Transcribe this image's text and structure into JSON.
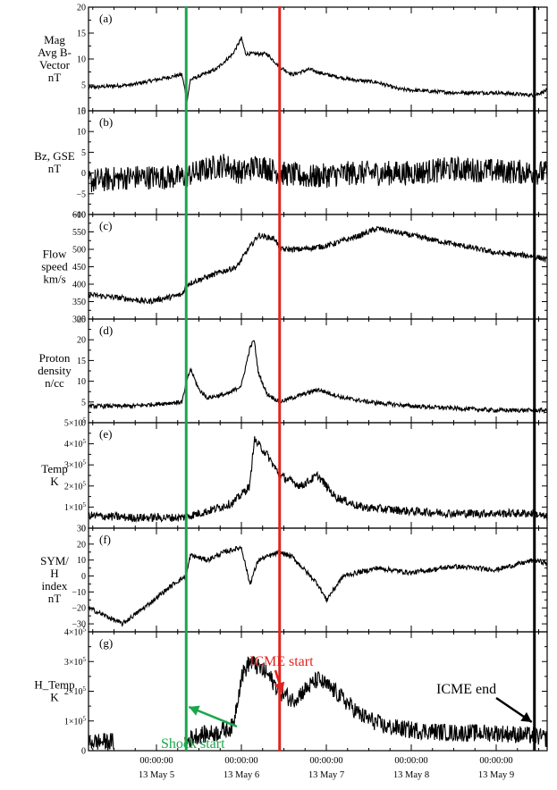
{
  "chart_data": {
    "type": "line",
    "x_axis": {
      "unit": "days since 00:00 13 May 5",
      "range": [
        -0.8,
        4.6
      ],
      "ticks": [
        {
          "value": 0,
          "time": "00:00:00",
          "date": "13 May 5"
        },
        {
          "value": 1,
          "time": "00:00:00",
          "date": "13 May 6"
        },
        {
          "value": 2,
          "time": "00:00:00",
          "date": "13 May 7"
        },
        {
          "value": 3,
          "time": "00:00:00",
          "date": "13 May 8"
        },
        {
          "value": 4,
          "time": "00:00:00",
          "date": "13 May 9"
        }
      ]
    },
    "event_lines": [
      {
        "name": "shock",
        "x": 0.35,
        "color": "#1aa64a",
        "label": "Shock start",
        "label_color": "#1aa64a"
      },
      {
        "name": "icme-start",
        "x": 1.45,
        "color": "#e0231f",
        "label": "ICME start",
        "label_color": "#e0231f"
      },
      {
        "name": "icme-end",
        "x": 4.45,
        "color": "#000000",
        "label": "ICME end",
        "label_color": "#000000"
      }
    ],
    "panels": [
      {
        "id": "a",
        "tag": "(a)",
        "ylabel": [
          "Mag",
          "Avg B-",
          "Vector",
          "nT"
        ],
        "ylim": [
          0,
          20
        ],
        "yticks": [
          {
            "v": 0,
            "t": "0"
          },
          {
            "v": 5,
            "t": "5"
          },
          {
            "v": 10,
            "t": "10"
          },
          {
            "v": 15,
            "t": "15"
          },
          {
            "v": 20,
            "t": "20"
          }
        ],
        "noise": 0.35,
        "gap": [],
        "keypoints": [
          [
            -0.8,
            4.5
          ],
          [
            -0.3,
            5
          ],
          [
            0,
            6
          ],
          [
            0.3,
            7
          ],
          [
            0.36,
            2
          ],
          [
            0.4,
            6
          ],
          [
            0.7,
            8
          ],
          [
            0.9,
            11
          ],
          [
            1.0,
            14
          ],
          [
            1.05,
            11
          ],
          [
            1.3,
            11
          ],
          [
            1.45,
            8.5
          ],
          [
            1.6,
            7
          ],
          [
            1.8,
            8
          ],
          [
            2.0,
            7
          ],
          [
            2.3,
            6
          ],
          [
            2.6,
            5.5
          ],
          [
            2.85,
            4.2
          ],
          [
            3.0,
            4
          ],
          [
            3.5,
            3.5
          ],
          [
            4.0,
            3.5
          ],
          [
            4.45,
            3
          ],
          [
            4.6,
            4
          ]
        ]
      },
      {
        "id": "b",
        "tag": "(b)",
        "ylabel": [
          "Bz, GSE",
          "nT"
        ],
        "ylim": [
          -10,
          15
        ],
        "yticks": [
          {
            "v": -10,
            "t": "−10"
          },
          {
            "v": -5,
            "t": "−5"
          },
          {
            "v": 0,
            "t": "0"
          },
          {
            "v": 5,
            "t": "5"
          },
          {
            "v": 10,
            "t": "10"
          },
          {
            "v": 15,
            "t": "15"
          }
        ],
        "noise": 3,
        "gap": [],
        "keypoints": [
          [
            -0.8,
            -2
          ],
          [
            -0.3,
            -1
          ],
          [
            0.3,
            -1
          ],
          [
            0.6,
            1
          ],
          [
            0.8,
            2
          ],
          [
            1.0,
            0
          ],
          [
            1.2,
            2
          ],
          [
            1.45,
            0
          ],
          [
            1.8,
            -1
          ],
          [
            2.3,
            0
          ],
          [
            3.0,
            0
          ],
          [
            3.5,
            1
          ],
          [
            4.0,
            0.5
          ],
          [
            4.6,
            0
          ]
        ]
      },
      {
        "id": "c",
        "tag": "(c)",
        "ylabel": [
          "Flow",
          "speed",
          "km/s"
        ],
        "ylim": [
          300,
          600
        ],
        "yticks": [
          {
            "v": 300,
            "t": "300"
          },
          {
            "v": 350,
            "t": "350"
          },
          {
            "v": 400,
            "t": "400"
          },
          {
            "v": 450,
            "t": "450"
          },
          {
            "v": 500,
            "t": "500"
          },
          {
            "v": 550,
            "t": "550"
          },
          {
            "v": 600,
            "t": "600"
          }
        ],
        "noise": 8,
        "gap": [],
        "keypoints": [
          [
            -0.8,
            370
          ],
          [
            -0.4,
            360
          ],
          [
            -0.1,
            350
          ],
          [
            0.3,
            370
          ],
          [
            0.36,
            400
          ],
          [
            0.7,
            430
          ],
          [
            0.95,
            450
          ],
          [
            1.05,
            490
          ],
          [
            1.2,
            540
          ],
          [
            1.4,
            530
          ],
          [
            1.45,
            500
          ],
          [
            1.7,
            500
          ],
          [
            2.0,
            510
          ],
          [
            2.4,
            540
          ],
          [
            2.6,
            560
          ],
          [
            2.8,
            550
          ],
          [
            3.2,
            530
          ],
          [
            3.6,
            510
          ],
          [
            4.0,
            490
          ],
          [
            4.45,
            480
          ],
          [
            4.6,
            470
          ]
        ]
      },
      {
        "id": "d",
        "tag": "(d)",
        "ylabel": [
          "Proton",
          "density",
          "n/cc"
        ],
        "ylim": [
          0,
          25
        ],
        "yticks": [
          {
            "v": 0,
            "t": "0"
          },
          {
            "v": 5,
            "t": "5"
          },
          {
            "v": 10,
            "t": "10"
          },
          {
            "v": 15,
            "t": "15"
          },
          {
            "v": 20,
            "t": "20"
          },
          {
            "v": 25,
            "t": "25"
          }
        ],
        "noise": 0.5,
        "gap": [],
        "keypoints": [
          [
            -0.8,
            4
          ],
          [
            -0.3,
            4
          ],
          [
            0.3,
            5
          ],
          [
            0.36,
            10
          ],
          [
            0.4,
            13
          ],
          [
            0.5,
            8
          ],
          [
            0.6,
            6
          ],
          [
            0.85,
            7
          ],
          [
            1.0,
            9
          ],
          [
            1.1,
            18
          ],
          [
            1.15,
            20
          ],
          [
            1.2,
            12
          ],
          [
            1.3,
            7
          ],
          [
            1.45,
            5
          ],
          [
            1.6,
            6
          ],
          [
            1.9,
            8
          ],
          [
            2.2,
            6
          ],
          [
            2.5,
            5
          ],
          [
            3.0,
            4
          ],
          [
            3.5,
            3.5
          ],
          [
            4.0,
            3
          ],
          [
            4.6,
            3
          ]
        ]
      },
      {
        "id": "e",
        "tag": "(e)",
        "ylabel": [
          "Temp",
          "K"
        ],
        "ylim": [
          0,
          500000
        ],
        "yticks": [
          {
            "v": 0,
            "t": "0",
            "exp": ""
          },
          {
            "v": 100000,
            "t": "1×10",
            "exp": "5"
          },
          {
            "v": 200000,
            "t": "2×10",
            "exp": "5"
          },
          {
            "v": 300000,
            "t": "3×10",
            "exp": "5"
          },
          {
            "v": 400000,
            "t": "4×10",
            "exp": "5"
          },
          {
            "v": 500000,
            "t": "5×10",
            "exp": "5"
          }
        ],
        "noise": 20000,
        "gap": [],
        "keypoints": [
          [
            -0.8,
            60000
          ],
          [
            -0.3,
            50000
          ],
          [
            0.3,
            50000
          ],
          [
            0.6,
            80000
          ],
          [
            0.9,
            120000
          ],
          [
            1.1,
            200000
          ],
          [
            1.15,
            420000
          ],
          [
            1.3,
            350000
          ],
          [
            1.45,
            250000
          ],
          [
            1.7,
            200000
          ],
          [
            1.9,
            250000
          ],
          [
            2.1,
            150000
          ],
          [
            2.4,
            100000
          ],
          [
            3.0,
            80000
          ],
          [
            3.5,
            70000
          ],
          [
            4.0,
            70000
          ],
          [
            4.45,
            70000
          ],
          [
            4.6,
            50000
          ]
        ]
      },
      {
        "id": "f",
        "tag": "(f)",
        "ylabel": [
          "SYM/",
          "H",
          "index",
          "nT"
        ],
        "ylim": [
          -35,
          30
        ],
        "yticks": [
          {
            "v": -30,
            "t": "−30"
          },
          {
            "v": -20,
            "t": "−20"
          },
          {
            "v": -10,
            "t": "−10"
          },
          {
            "v": 0,
            "t": "0"
          },
          {
            "v": 10,
            "t": "10"
          },
          {
            "v": 20,
            "t": "20"
          },
          {
            "v": 30,
            "t": "30"
          }
        ],
        "noise": 1.5,
        "gap": [],
        "keypoints": [
          [
            -0.8,
            -20
          ],
          [
            -0.6,
            -25
          ],
          [
            -0.4,
            -30
          ],
          [
            -0.1,
            -18
          ],
          [
            0.2,
            -5
          ],
          [
            0.35,
            0
          ],
          [
            0.4,
            13
          ],
          [
            0.6,
            10
          ],
          [
            0.8,
            15
          ],
          [
            1.0,
            18
          ],
          [
            1.1,
            -5
          ],
          [
            1.2,
            10
          ],
          [
            1.45,
            15
          ],
          [
            1.6,
            12
          ],
          [
            1.9,
            -5
          ],
          [
            2.0,
            -15
          ],
          [
            2.2,
            0
          ],
          [
            2.6,
            5
          ],
          [
            3.0,
            2
          ],
          [
            3.5,
            6
          ],
          [
            4.0,
            4
          ],
          [
            4.45,
            10
          ],
          [
            4.6,
            8
          ]
        ]
      },
      {
        "id": "g",
        "tag": "(g)",
        "ylabel": [
          "H_Temp",
          "K"
        ],
        "ylim": [
          0,
          400000
        ],
        "yticks": [
          {
            "v": 0,
            "t": "0",
            "exp": ""
          },
          {
            "v": 100000,
            "t": "1×10",
            "exp": "5"
          },
          {
            "v": 200000,
            "t": "2×10",
            "exp": "5"
          },
          {
            "v": 300000,
            "t": "3×10",
            "exp": "5"
          },
          {
            "v": 400000,
            "t": "4×10",
            "exp": "5"
          }
        ],
        "noise": 30000,
        "gap": [
          -0.5,
          0.33
        ],
        "keypoints": [
          [
            -0.8,
            30000
          ],
          [
            -0.5,
            30000
          ],
          [
            0.35,
            30000
          ],
          [
            0.45,
            50000
          ],
          [
            0.7,
            60000
          ],
          [
            0.9,
            80000
          ],
          [
            1.0,
            250000
          ],
          [
            1.1,
            300000
          ],
          [
            1.3,
            260000
          ],
          [
            1.45,
            200000
          ],
          [
            1.6,
            170000
          ],
          [
            1.9,
            240000
          ],
          [
            2.1,
            200000
          ],
          [
            2.4,
            120000
          ],
          [
            2.7,
            80000
          ],
          [
            3.0,
            70000
          ],
          [
            3.5,
            60000
          ],
          [
            4.0,
            60000
          ],
          [
            4.45,
            50000
          ],
          [
            4.6,
            40000
          ]
        ]
      }
    ]
  }
}
